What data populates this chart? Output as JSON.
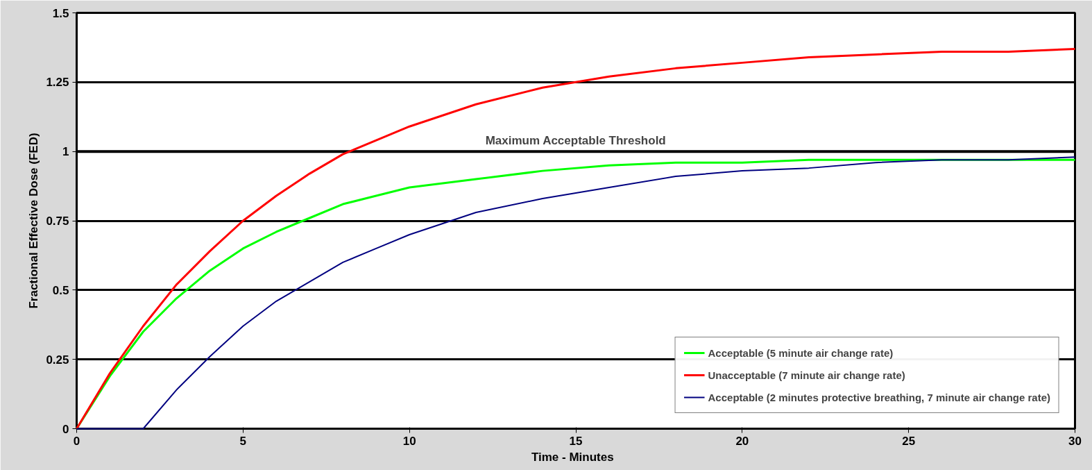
{
  "chart_data": {
    "type": "line",
    "xlabel": "Time  -  Minutes",
    "ylabel": "Fractional Effective Dose (FED)",
    "x": [
      0,
      1,
      2,
      3,
      4,
      5,
      6,
      7,
      8,
      9,
      10,
      12,
      14,
      16,
      18,
      20,
      22,
      24,
      26,
      28,
      30
    ],
    "series": [
      {
        "name": "Acceptable (5 minute air change rate)",
        "color": "#00ff00",
        "values": [
          0,
          0.19,
          0.35,
          0.47,
          0.57,
          0.65,
          0.71,
          0.76,
          0.81,
          0.84,
          0.87,
          0.9,
          0.93,
          0.95,
          0.96,
          0.96,
          0.97,
          0.97,
          0.97,
          0.97,
          0.97
        ]
      },
      {
        "name": "Unacceptable (7 minute air change rate)",
        "color": "#ff0000",
        "values": [
          0,
          0.2,
          0.37,
          0.52,
          0.64,
          0.75,
          0.84,
          0.92,
          0.99,
          1.04,
          1.09,
          1.17,
          1.23,
          1.27,
          1.3,
          1.32,
          1.34,
          1.35,
          1.36,
          1.36,
          1.37
        ]
      },
      {
        "name": "Acceptable (2 minutes protective breathing, 7 minute air change rate)",
        "color": "#000080",
        "values": [
          0,
          0,
          0,
          0.14,
          0.26,
          0.37,
          0.46,
          0.53,
          0.6,
          0.65,
          0.7,
          0.78,
          0.83,
          0.87,
          0.91,
          0.93,
          0.94,
          0.96,
          0.97,
          0.97,
          0.98
        ]
      }
    ],
    "xlim": [
      0,
      30
    ],
    "xticks": [
      0,
      5,
      10,
      15,
      20,
      25,
      30
    ],
    "ylim": [
      0,
      1.5
    ],
    "yticks": [
      0,
      0.25,
      0.5,
      0.75,
      1,
      1.25,
      1.5
    ],
    "ref_lines": [
      {
        "axis": "y",
        "value": 1,
        "label": "Maximum Acceptable Threshold",
        "color": "#000000"
      }
    ],
    "grid": "y",
    "legend": "bottom right",
    "marker": "none",
    "line_style": "solid"
  }
}
